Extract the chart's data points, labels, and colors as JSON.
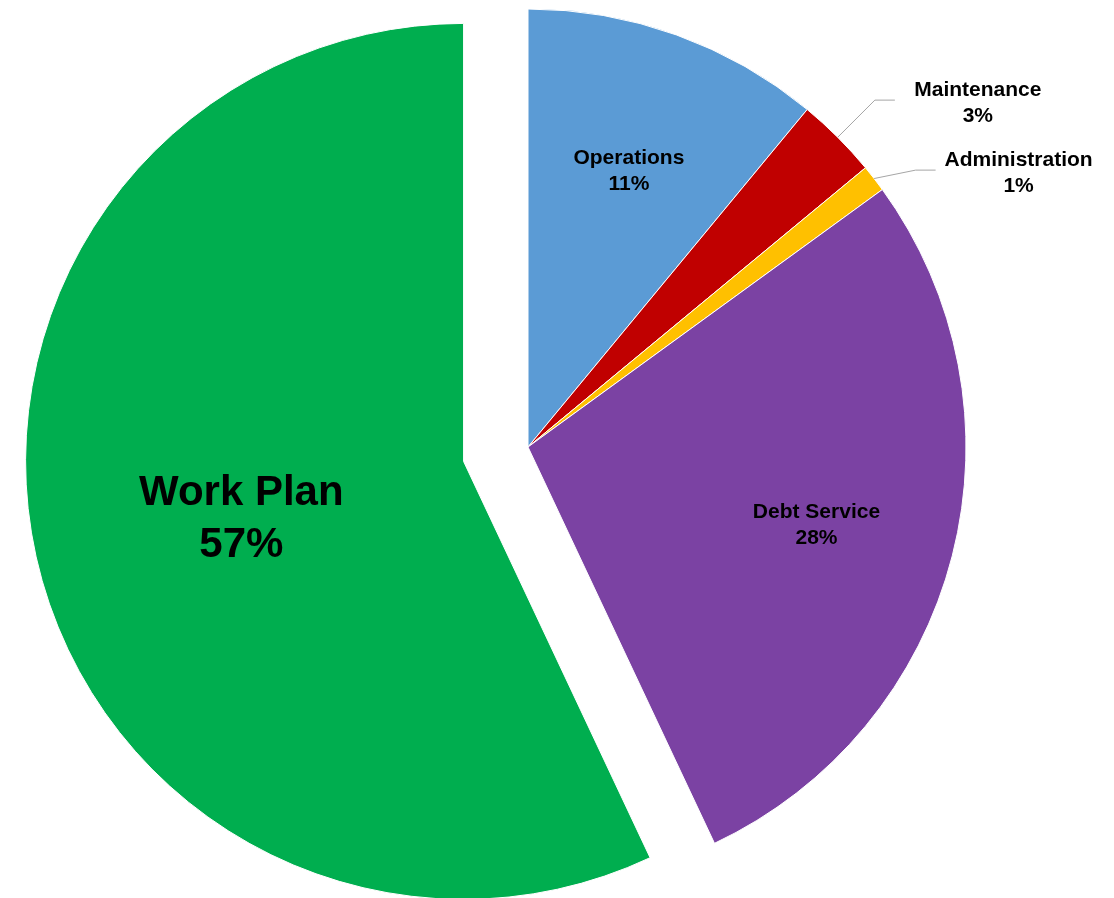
{
  "chart_data": {
    "type": "pie",
    "categories": [
      "Operations",
      "Maintenance",
      "Administration",
      "Debt Service",
      "Work Plan"
    ],
    "values": [
      11,
      3,
      1,
      28,
      57
    ],
    "value_labels": [
      "11%",
      "3%",
      "1%",
      "28%",
      "57%"
    ],
    "colors": [
      "#5b9bd5",
      "#c00000",
      "#ffc000",
      "#7b42a3",
      "#00ae4f"
    ]
  }
}
